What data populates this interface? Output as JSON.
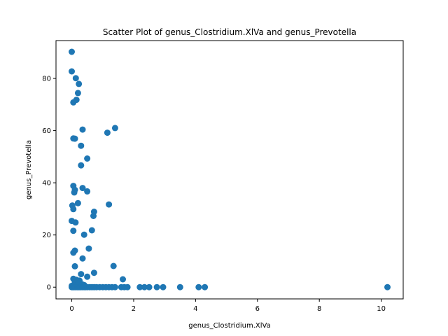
{
  "chart_data": {
    "type": "scatter",
    "title": "Scatter Plot of genus_Clostridium.XlVa and genus_Prevotella",
    "xlabel": "genus_Clostridium.XlVa",
    "ylabel": "genus_Prevotella",
    "xlim": [
      -0.51,
      10.71
    ],
    "ylim": [
      -4.5,
      94.5
    ],
    "xticks": [
      0,
      2,
      4,
      6,
      8,
      10
    ],
    "yticks": [
      0,
      20,
      40,
      60,
      80
    ],
    "grid": false,
    "marker_color": "#1f77b4",
    "points": [
      [
        0.0,
        90.2
      ],
      [
        0.0,
        82.7
      ],
      [
        0.13,
        80.1
      ],
      [
        0.23,
        77.9
      ],
      [
        0.2,
        74.4
      ],
      [
        0.15,
        71.8
      ],
      [
        0.05,
        70.8
      ],
      [
        1.4,
        61.0
      ],
      [
        0.35,
        60.4
      ],
      [
        1.15,
        59.2
      ],
      [
        0.05,
        57.0
      ],
      [
        0.1,
        56.9
      ],
      [
        0.3,
        54.2
      ],
      [
        0.5,
        49.3
      ],
      [
        0.3,
        46.7
      ],
      [
        0.05,
        38.8
      ],
      [
        0.35,
        38.0
      ],
      [
        0.1,
        37.3
      ],
      [
        0.08,
        36.3
      ],
      [
        0.5,
        36.7
      ],
      [
        0.2,
        32.2
      ],
      [
        1.2,
        31.7
      ],
      [
        0.02,
        31.3
      ],
      [
        0.05,
        29.9
      ],
      [
        0.72,
        28.9
      ],
      [
        0.7,
        27.3
      ],
      [
        0.0,
        25.4
      ],
      [
        0.12,
        24.8
      ],
      [
        0.05,
        21.6
      ],
      [
        0.65,
        21.8
      ],
      [
        0.4,
        20.1
      ],
      [
        0.1,
        14.0
      ],
      [
        0.05,
        13.2
      ],
      [
        0.55,
        14.8
      ],
      [
        0.35,
        11.0
      ],
      [
        0.1,
        8.0
      ],
      [
        1.35,
        8.1
      ],
      [
        0.72,
        5.5
      ],
      [
        0.3,
        5.0
      ],
      [
        0.5,
        4.0
      ],
      [
        1.65,
        3.0
      ],
      [
        0.05,
        3.2
      ],
      [
        0.15,
        2.8
      ],
      [
        0.25,
        2.5
      ],
      [
        0.1,
        1.8
      ],
      [
        0.2,
        1.2
      ],
      [
        0.35,
        1.0
      ],
      [
        0.4,
        0.8
      ],
      [
        0.0,
        0.5
      ],
      [
        0.05,
        0.3
      ],
      [
        0.0,
        0.0
      ],
      [
        0.03,
        0.0
      ],
      [
        0.06,
        0.0
      ],
      [
        0.1,
        0.0
      ],
      [
        0.14,
        0.0
      ],
      [
        0.18,
        0.0
      ],
      [
        0.22,
        0.0
      ],
      [
        0.26,
        0.0
      ],
      [
        0.3,
        0.0
      ],
      [
        0.35,
        0.0
      ],
      [
        0.4,
        0.0
      ],
      [
        0.45,
        0.0
      ],
      [
        0.5,
        0.0
      ],
      [
        0.58,
        0.0
      ],
      [
        0.65,
        0.0
      ],
      [
        0.72,
        0.0
      ],
      [
        0.8,
        0.0
      ],
      [
        0.9,
        0.0
      ],
      [
        1.0,
        0.0
      ],
      [
        1.1,
        0.0
      ],
      [
        1.2,
        0.0
      ],
      [
        1.3,
        0.0
      ],
      [
        1.4,
        0.0
      ],
      [
        1.6,
        0.0
      ],
      [
        1.7,
        0.0
      ],
      [
        1.8,
        0.0
      ],
      [
        2.2,
        0.0
      ],
      [
        2.35,
        0.0
      ],
      [
        2.5,
        0.0
      ],
      [
        2.75,
        0.0
      ],
      [
        2.95,
        0.0
      ],
      [
        3.5,
        0.0
      ],
      [
        4.1,
        0.0
      ],
      [
        4.3,
        0.0
      ],
      [
        10.2,
        0.0
      ]
    ]
  }
}
